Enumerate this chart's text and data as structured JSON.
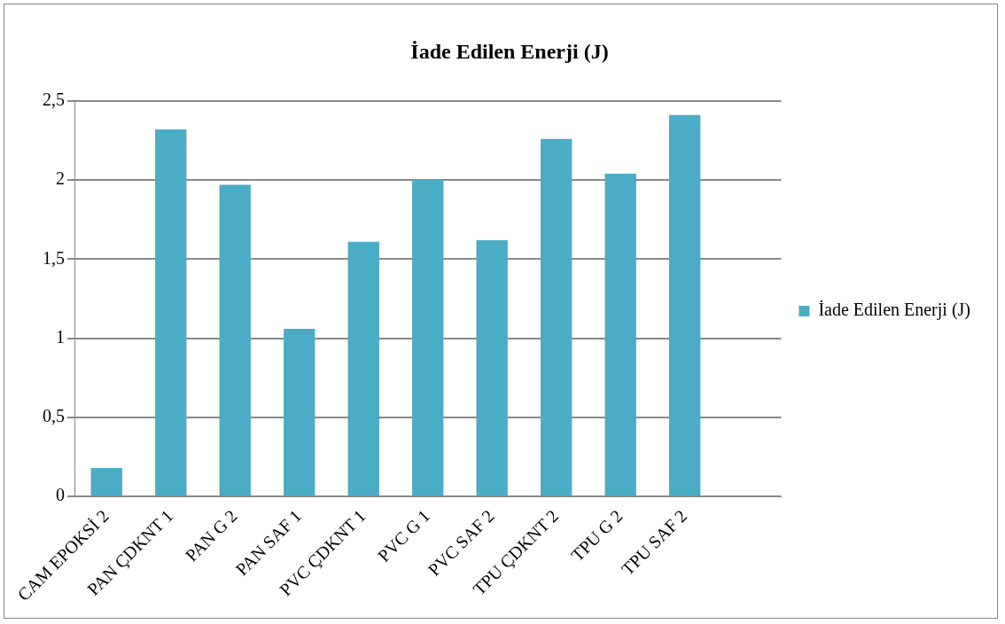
{
  "chart_data": {
    "type": "bar",
    "title": "İade Edilen Enerji (J)",
    "categories": [
      "CAM EPOKSİ 2",
      "PAN ÇDKNT 1",
      "PAN G 2",
      "PAN SAF 1",
      "PVC ÇDKNT 1",
      "PVC G 1",
      "PVC SAF 2",
      "TPU ÇDKNT 2",
      "TPU G 2",
      "TPU SAF 2",
      null
    ],
    "series": [
      {
        "name": "İade Edilen Enerji (J)",
        "color": "#4bacc6",
        "values": [
          0.18,
          2.32,
          1.97,
          1.06,
          1.61,
          2.0,
          1.62,
          2.26,
          2.04,
          2.41,
          null
        ]
      }
    ],
    "ylim": [
      0,
      2.5
    ],
    "yticks": [
      0,
      {
        "value": 0.5,
        "label": "0,5"
      },
      1,
      {
        "value": 1.5,
        "label": "1,5"
      },
      2,
      {
        "value": 2.5,
        "label": "2,5"
      }
    ],
    "grid": "y",
    "legend": "right"
  }
}
